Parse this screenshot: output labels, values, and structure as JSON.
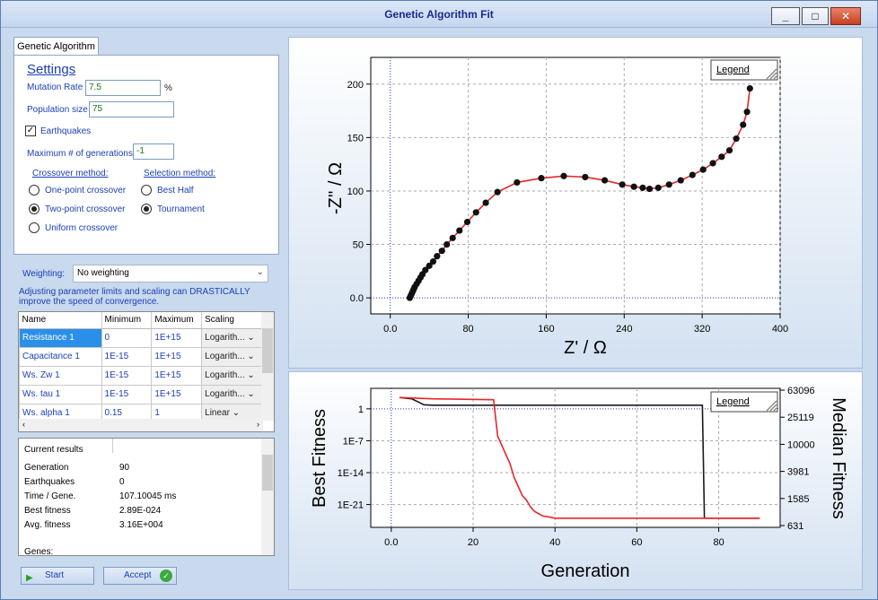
{
  "window": {
    "title": "Genetic Algorithm Fit"
  },
  "tabs": {
    "genetic_algorithm": "Genetic Algorithm"
  },
  "settings": {
    "header": "Settings",
    "mutation_rate_label": "Mutation Rate",
    "mutation_rate_value": "7.5",
    "mutation_rate_unit": "%",
    "population_size_label": "Population size",
    "population_size_value": "75",
    "earthquakes_label": "Earthquakes",
    "earthquakes_checked": true,
    "max_generations_label": "Maximum # of generations",
    "max_generations_value": "-1",
    "crossover_header": "Crossover method:",
    "crossover_options": [
      "One-point crossover",
      "Two-point crossover",
      "Uniform crossover"
    ],
    "crossover_selected": "Two-point crossover",
    "selection_header": "Selection method:",
    "selection_options": [
      "Best Half",
      "Tournament"
    ],
    "selection_selected": "Tournament"
  },
  "weighting": {
    "label": "Weighting:",
    "value": "No weighting",
    "hint": "Adjusting parameter limits and scaling can DRASTICALLY improve the speed of convergence."
  },
  "param_table": {
    "headers": [
      "Name",
      "Minimum",
      "Maximum",
      "Scaling"
    ],
    "rows": [
      [
        "Resistance 1",
        "0",
        "1E+15",
        "Logarith..."
      ],
      [
        "Capacitance 1",
        "1E-15",
        "1E+15",
        "Logarith..."
      ],
      [
        "Ws. Zw 1",
        "1E-15",
        "1E+15",
        "Logarith..."
      ],
      [
        "Ws. tau 1",
        "1E-15",
        "1E+15",
        "Logarith..."
      ],
      [
        "Ws. alpha 1",
        "0.15",
        "1",
        "Linear"
      ]
    ]
  },
  "results": {
    "header": "Current results",
    "items": [
      [
        "Generation",
        "90"
      ],
      [
        "Earthquakes",
        "0"
      ],
      [
        "Time / Gene.",
        "107.10045 ms"
      ],
      [
        "Best fitness",
        "2.89E-024"
      ],
      [
        "Avg. fitness",
        "3.16E+004"
      ]
    ],
    "genes_label": "Genes:"
  },
  "buttons": {
    "start": "Start",
    "accept": "Accept"
  },
  "chart_data": [
    {
      "type": "scatter",
      "xlabel": "Z' / Ω",
      "ylabel": "-Z'' / Ω",
      "xlim": [
        -20,
        400
      ],
      "ylim": [
        -15,
        225
      ],
      "xticks": [
        "0.0",
        "80",
        "160",
        "240",
        "320",
        "400"
      ],
      "yticks": [
        "0.0",
        "50",
        "100",
        "150",
        "200"
      ],
      "legend": "Legend",
      "legend_position": "top-right",
      "grid": true,
      "points_x": [
        20,
        21,
        22,
        23,
        24,
        25,
        27,
        29,
        31,
        33,
        36,
        40,
        44,
        48,
        53,
        58,
        64,
        71,
        79,
        88,
        98,
        110,
        130,
        155,
        178,
        200,
        220,
        238,
        250,
        259,
        266,
        275,
        286,
        298,
        310,
        321,
        331,
        340,
        348,
        355,
        362,
        366,
        369
      ],
      "points_y": [
        0,
        2,
        4,
        6,
        8,
        10,
        13,
        16,
        19,
        22,
        26,
        30,
        34,
        39,
        44,
        50,
        56,
        63,
        71,
        80,
        89,
        99,
        108,
        112,
        114,
        113,
        110,
        106,
        104,
        103,
        102,
        103,
        106,
        110,
        115,
        120,
        126,
        132,
        138,
        149,
        162,
        174,
        196
      ]
    },
    {
      "type": "line",
      "xlabel": "Generation",
      "ylabel": "Best Fitness",
      "y2label": "Median Fitness",
      "xlim": [
        -5,
        95
      ],
      "xticks": [
        "0.0",
        "20",
        "40",
        "60",
        "80"
      ],
      "yticks_left": [
        "1",
        "1E-7",
        "1E-14",
        "1E-21"
      ],
      "yticks_right": [
        "63096",
        "25119",
        "10000",
        "3981",
        "1585",
        "631"
      ],
      "legend": "Legend",
      "legend_position": "top-right",
      "grid": true,
      "series": [
        {
          "name": "",
          "color": "#1a1a1a",
          "x": [
            2,
            5,
            8,
            10,
            25,
            76,
            76.5,
            90
          ],
          "y_log10": [
            2.5,
            2.2,
            0.9,
            0.8,
            0.8,
            0.8,
            -24,
            -24
          ]
        },
        {
          "name": "",
          "color": "#e8252a",
          "x": [
            2,
            10,
            25,
            26,
            27,
            28,
            29,
            30,
            31,
            32,
            33,
            34,
            35,
            36,
            37,
            39,
            40,
            90
          ],
          "y_log10": [
            2.5,
            2.2,
            2.0,
            -6,
            -8,
            -10,
            -12,
            -15,
            -17,
            -19,
            -20,
            -21.5,
            -22.5,
            -23,
            -23.5,
            -23.8,
            -24,
            -24
          ]
        }
      ]
    }
  ]
}
